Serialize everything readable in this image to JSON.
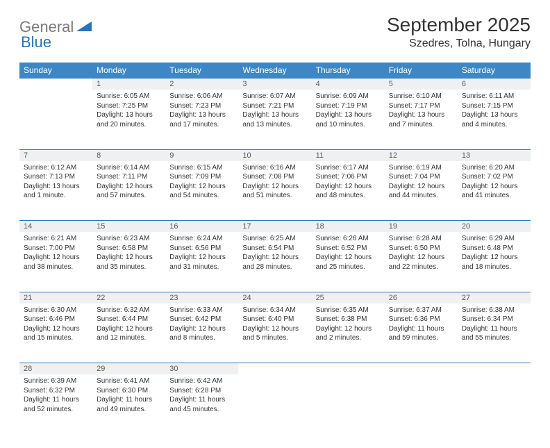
{
  "logo": {
    "text_gray": "General",
    "text_blue": "Blue"
  },
  "title": "September 2025",
  "location": "Szedres, Tolna, Hungary",
  "colors": {
    "header_bg": "#3d87c7",
    "header_text": "#ffffff",
    "daynum_bg": "#eef0f2",
    "daynum_text": "#5a5a5a",
    "rule": "#2973b8",
    "body_text": "#333333",
    "logo_gray": "#7a7a7a",
    "logo_blue": "#2973b8"
  },
  "day_headers": [
    "Sunday",
    "Monday",
    "Tuesday",
    "Wednesday",
    "Thursday",
    "Friday",
    "Saturday"
  ],
  "weeks": [
    [
      {
        "num": "",
        "lines": []
      },
      {
        "num": "1",
        "lines": [
          "Sunrise: 6:05 AM",
          "Sunset: 7:25 PM",
          "Daylight: 13 hours",
          "and 20 minutes."
        ]
      },
      {
        "num": "2",
        "lines": [
          "Sunrise: 6:06 AM",
          "Sunset: 7:23 PM",
          "Daylight: 13 hours",
          "and 17 minutes."
        ]
      },
      {
        "num": "3",
        "lines": [
          "Sunrise: 6:07 AM",
          "Sunset: 7:21 PM",
          "Daylight: 13 hours",
          "and 13 minutes."
        ]
      },
      {
        "num": "4",
        "lines": [
          "Sunrise: 6:09 AM",
          "Sunset: 7:19 PM",
          "Daylight: 13 hours",
          "and 10 minutes."
        ]
      },
      {
        "num": "5",
        "lines": [
          "Sunrise: 6:10 AM",
          "Sunset: 7:17 PM",
          "Daylight: 13 hours",
          "and 7 minutes."
        ]
      },
      {
        "num": "6",
        "lines": [
          "Sunrise: 6:11 AM",
          "Sunset: 7:15 PM",
          "Daylight: 13 hours",
          "and 4 minutes."
        ]
      }
    ],
    [
      {
        "num": "7",
        "lines": [
          "Sunrise: 6:12 AM",
          "Sunset: 7:13 PM",
          "Daylight: 13 hours",
          "and 1 minute."
        ]
      },
      {
        "num": "8",
        "lines": [
          "Sunrise: 6:14 AM",
          "Sunset: 7:11 PM",
          "Daylight: 12 hours",
          "and 57 minutes."
        ]
      },
      {
        "num": "9",
        "lines": [
          "Sunrise: 6:15 AM",
          "Sunset: 7:09 PM",
          "Daylight: 12 hours",
          "and 54 minutes."
        ]
      },
      {
        "num": "10",
        "lines": [
          "Sunrise: 6:16 AM",
          "Sunset: 7:08 PM",
          "Daylight: 12 hours",
          "and 51 minutes."
        ]
      },
      {
        "num": "11",
        "lines": [
          "Sunrise: 6:17 AM",
          "Sunset: 7:06 PM",
          "Daylight: 12 hours",
          "and 48 minutes."
        ]
      },
      {
        "num": "12",
        "lines": [
          "Sunrise: 6:19 AM",
          "Sunset: 7:04 PM",
          "Daylight: 12 hours",
          "and 44 minutes."
        ]
      },
      {
        "num": "13",
        "lines": [
          "Sunrise: 6:20 AM",
          "Sunset: 7:02 PM",
          "Daylight: 12 hours",
          "and 41 minutes."
        ]
      }
    ],
    [
      {
        "num": "14",
        "lines": [
          "Sunrise: 6:21 AM",
          "Sunset: 7:00 PM",
          "Daylight: 12 hours",
          "and 38 minutes."
        ]
      },
      {
        "num": "15",
        "lines": [
          "Sunrise: 6:23 AM",
          "Sunset: 6:58 PM",
          "Daylight: 12 hours",
          "and 35 minutes."
        ]
      },
      {
        "num": "16",
        "lines": [
          "Sunrise: 6:24 AM",
          "Sunset: 6:56 PM",
          "Daylight: 12 hours",
          "and 31 minutes."
        ]
      },
      {
        "num": "17",
        "lines": [
          "Sunrise: 6:25 AM",
          "Sunset: 6:54 PM",
          "Daylight: 12 hours",
          "and 28 minutes."
        ]
      },
      {
        "num": "18",
        "lines": [
          "Sunrise: 6:26 AM",
          "Sunset: 6:52 PM",
          "Daylight: 12 hours",
          "and 25 minutes."
        ]
      },
      {
        "num": "19",
        "lines": [
          "Sunrise: 6:28 AM",
          "Sunset: 6:50 PM",
          "Daylight: 12 hours",
          "and 22 minutes."
        ]
      },
      {
        "num": "20",
        "lines": [
          "Sunrise: 6:29 AM",
          "Sunset: 6:48 PM",
          "Daylight: 12 hours",
          "and 18 minutes."
        ]
      }
    ],
    [
      {
        "num": "21",
        "lines": [
          "Sunrise: 6:30 AM",
          "Sunset: 6:46 PM",
          "Daylight: 12 hours",
          "and 15 minutes."
        ]
      },
      {
        "num": "22",
        "lines": [
          "Sunrise: 6:32 AM",
          "Sunset: 6:44 PM",
          "Daylight: 12 hours",
          "and 12 minutes."
        ]
      },
      {
        "num": "23",
        "lines": [
          "Sunrise: 6:33 AM",
          "Sunset: 6:42 PM",
          "Daylight: 12 hours",
          "and 8 minutes."
        ]
      },
      {
        "num": "24",
        "lines": [
          "Sunrise: 6:34 AM",
          "Sunset: 6:40 PM",
          "Daylight: 12 hours",
          "and 5 minutes."
        ]
      },
      {
        "num": "25",
        "lines": [
          "Sunrise: 6:35 AM",
          "Sunset: 6:38 PM",
          "Daylight: 12 hours",
          "and 2 minutes."
        ]
      },
      {
        "num": "26",
        "lines": [
          "Sunrise: 6:37 AM",
          "Sunset: 6:36 PM",
          "Daylight: 11 hours",
          "and 59 minutes."
        ]
      },
      {
        "num": "27",
        "lines": [
          "Sunrise: 6:38 AM",
          "Sunset: 6:34 PM",
          "Daylight: 11 hours",
          "and 55 minutes."
        ]
      }
    ],
    [
      {
        "num": "28",
        "lines": [
          "Sunrise: 6:39 AM",
          "Sunset: 6:32 PM",
          "Daylight: 11 hours",
          "and 52 minutes."
        ]
      },
      {
        "num": "29",
        "lines": [
          "Sunrise: 6:41 AM",
          "Sunset: 6:30 PM",
          "Daylight: 11 hours",
          "and 49 minutes."
        ]
      },
      {
        "num": "30",
        "lines": [
          "Sunrise: 6:42 AM",
          "Sunset: 6:28 PM",
          "Daylight: 11 hours",
          "and 45 minutes."
        ]
      },
      {
        "num": "",
        "lines": []
      },
      {
        "num": "",
        "lines": []
      },
      {
        "num": "",
        "lines": []
      },
      {
        "num": "",
        "lines": []
      }
    ]
  ]
}
